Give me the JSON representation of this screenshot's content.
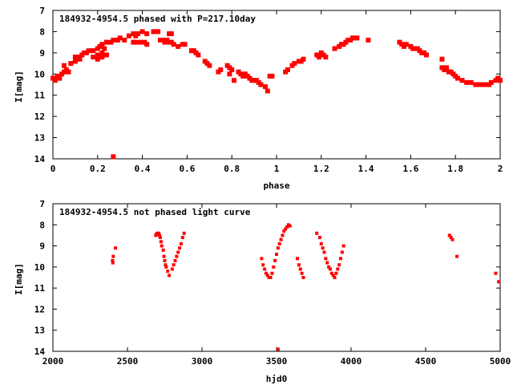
{
  "colors": {
    "marker": "#ff0000",
    "axis": "#000000",
    "background": "#ffffff"
  },
  "chart_data": [
    {
      "type": "scatter",
      "title": "184932-4954.5 phased with P=217.10day",
      "xlabel": "phase",
      "ylabel": "I[mag]",
      "xlim": [
        0,
        2
      ],
      "ylim": [
        14,
        7
      ],
      "y_inverted": true,
      "xticks": [
        "0",
        "0.2",
        "0.4",
        "0.6",
        "0.8",
        "1",
        "1.2",
        "1.4",
        "1.6",
        "1.8",
        "2"
      ],
      "yticks": [
        "7",
        "8",
        "9",
        "10",
        "11",
        "12",
        "13",
        "14"
      ],
      "grid": false,
      "legend": "none",
      "marker": "filled-square",
      "points": [
        [
          0.0,
          10.2
        ],
        [
          0.01,
          10.3
        ],
        [
          0.02,
          10.1
        ],
        [
          0.03,
          10.2
        ],
        [
          0.04,
          10.0
        ],
        [
          0.05,
          9.9
        ],
        [
          0.06,
          9.8
        ],
        [
          0.07,
          9.9
        ],
        [
          0.05,
          9.6
        ],
        [
          0.08,
          9.5
        ],
        [
          0.1,
          9.4
        ],
        [
          0.11,
          9.2
        ],
        [
          0.12,
          9.3
        ],
        [
          0.13,
          9.1
        ],
        [
          0.14,
          9.0
        ],
        [
          0.16,
          8.9
        ],
        [
          0.18,
          8.9
        ],
        [
          0.2,
          8.8
        ],
        [
          0.21,
          8.7
        ],
        [
          0.22,
          8.6
        ],
        [
          0.24,
          8.5
        ],
        [
          0.26,
          8.5
        ],
        [
          0.27,
          8.4
        ],
        [
          0.1,
          9.2
        ],
        [
          0.15,
          9.0
        ],
        [
          0.18,
          9.2
        ],
        [
          0.2,
          9.1
        ],
        [
          0.22,
          9.0
        ],
        [
          0.23,
          8.8
        ],
        [
          0.2,
          9.3
        ],
        [
          0.22,
          9.2
        ],
        [
          0.24,
          9.1
        ],
        [
          0.29,
          8.4
        ],
        [
          0.3,
          8.3
        ],
        [
          0.32,
          8.4
        ],
        [
          0.34,
          8.2
        ],
        [
          0.36,
          8.1
        ],
        [
          0.37,
          8.2
        ],
        [
          0.38,
          8.1
        ],
        [
          0.4,
          8.0
        ],
        [
          0.42,
          8.1
        ],
        [
          0.36,
          8.5
        ],
        [
          0.37,
          8.5
        ],
        [
          0.39,
          8.5
        ],
        [
          0.41,
          8.5
        ],
        [
          0.42,
          8.6
        ],
        [
          0.45,
          8.0
        ],
        [
          0.46,
          8.0
        ],
        [
          0.47,
          8.0
        ],
        [
          0.48,
          8.4
        ],
        [
          0.49,
          8.4
        ],
        [
          0.5,
          8.5
        ],
        [
          0.51,
          8.4
        ],
        [
          0.52,
          8.5
        ],
        [
          0.53,
          8.5
        ],
        [
          0.54,
          8.6
        ],
        [
          0.52,
          8.1
        ],
        [
          0.53,
          8.1
        ],
        [
          0.56,
          8.7
        ],
        [
          0.58,
          8.6
        ],
        [
          0.59,
          8.6
        ],
        [
          0.62,
          8.9
        ],
        [
          0.63,
          8.9
        ],
        [
          0.64,
          9.0
        ],
        [
          0.65,
          9.1
        ],
        [
          0.68,
          9.4
        ],
        [
          0.69,
          9.5
        ],
        [
          0.7,
          9.6
        ],
        [
          0.74,
          9.9
        ],
        [
          0.75,
          9.8
        ],
        [
          0.78,
          9.6
        ],
        [
          0.79,
          9.7
        ],
        [
          0.8,
          9.8
        ],
        [
          0.79,
          10.0
        ],
        [
          0.81,
          10.3
        ],
        [
          0.83,
          9.9
        ],
        [
          0.84,
          10.0
        ],
        [
          0.85,
          10.1
        ],
        [
          0.86,
          10.0
        ],
        [
          0.87,
          10.1
        ],
        [
          0.88,
          10.2
        ],
        [
          0.89,
          10.3
        ],
        [
          0.9,
          10.3
        ],
        [
          0.91,
          10.3
        ],
        [
          0.92,
          10.4
        ],
        [
          0.93,
          10.5
        ],
        [
          0.95,
          10.6
        ],
        [
          0.96,
          10.8
        ],
        [
          0.97,
          10.1
        ],
        [
          0.98,
          10.1
        ],
        [
          1.04,
          9.9
        ],
        [
          1.05,
          9.8
        ],
        [
          1.07,
          9.6
        ],
        [
          1.08,
          9.5
        ],
        [
          1.1,
          9.4
        ],
        [
          1.11,
          9.4
        ],
        [
          1.12,
          9.3
        ],
        [
          1.18,
          9.1
        ],
        [
          1.19,
          9.2
        ],
        [
          1.2,
          9.0
        ],
        [
          1.21,
          9.1
        ],
        [
          1.22,
          9.2
        ],
        [
          1.26,
          8.8
        ],
        [
          1.28,
          8.7
        ],
        [
          1.29,
          8.6
        ],
        [
          1.3,
          8.6
        ],
        [
          1.31,
          8.5
        ],
        [
          1.32,
          8.4
        ],
        [
          1.33,
          8.4
        ],
        [
          1.34,
          8.3
        ],
        [
          1.35,
          8.3
        ],
        [
          1.36,
          8.3
        ],
        [
          1.41,
          8.4
        ],
        [
          1.55,
          8.5
        ],
        [
          1.56,
          8.6
        ],
        [
          1.57,
          8.7
        ],
        [
          1.58,
          8.6
        ],
        [
          1.6,
          8.7
        ],
        [
          1.61,
          8.8
        ],
        [
          1.62,
          8.8
        ],
        [
          1.63,
          8.8
        ],
        [
          1.64,
          8.9
        ],
        [
          1.65,
          9.0
        ],
        [
          1.66,
          9.0
        ],
        [
          1.67,
          9.1
        ],
        [
          1.74,
          9.3
        ],
        [
          1.74,
          9.7
        ],
        [
          1.75,
          9.8
        ],
        [
          1.76,
          9.7
        ],
        [
          1.77,
          9.9
        ],
        [
          1.78,
          9.9
        ],
        [
          1.79,
          10.0
        ],
        [
          1.8,
          10.1
        ],
        [
          1.81,
          10.2
        ],
        [
          1.83,
          10.3
        ],
        [
          1.85,
          10.4
        ],
        [
          1.87,
          10.4
        ],
        [
          1.89,
          10.5
        ],
        [
          1.91,
          10.5
        ],
        [
          1.93,
          10.5
        ],
        [
          1.95,
          10.5
        ],
        [
          1.96,
          10.4
        ],
        [
          1.98,
          10.3
        ],
        [
          1.99,
          10.2
        ],
        [
          2.0,
          10.3
        ],
        [
          0.27,
          13.9
        ]
      ]
    },
    {
      "type": "scatter",
      "title": "184932-4954.5 not phased light curve",
      "xlabel": "hjd0",
      "ylabel": "I[mag]",
      "xlim": [
        2000,
        5000
      ],
      "ylim": [
        14,
        7
      ],
      "y_inverted": true,
      "xticks": [
        "2000",
        "2500",
        "3000",
        "3500",
        "4000",
        "4500",
        "5000"
      ],
      "yticks": [
        "7",
        "8",
        "9",
        "10",
        "11",
        "12",
        "13",
        "14"
      ],
      "grid": false,
      "legend": "none",
      "marker": "dot",
      "points": [
        [
          2400,
          9.7
        ],
        [
          2402,
          9.8
        ],
        [
          2405,
          9.5
        ],
        [
          2420,
          9.1
        ],
        [
          2690,
          8.5
        ],
        [
          2695,
          8.45
        ],
        [
          2700,
          8.4
        ],
        [
          2705,
          8.45
        ],
        [
          2710,
          8.4
        ],
        [
          2715,
          8.5
        ],
        [
          2720,
          8.6
        ],
        [
          2725,
          8.8
        ],
        [
          2730,
          9.0
        ],
        [
          2740,
          9.2
        ],
        [
          2745,
          9.5
        ],
        [
          2750,
          9.7
        ],
        [
          2755,
          9.9
        ],
        [
          2760,
          10.0
        ],
        [
          2770,
          10.2
        ],
        [
          2780,
          10.4
        ],
        [
          2800,
          10.1
        ],
        [
          2810,
          9.9
        ],
        [
          2820,
          9.7
        ],
        [
          2830,
          9.5
        ],
        [
          2840,
          9.3
        ],
        [
          2850,
          9.1
        ],
        [
          2860,
          8.9
        ],
        [
          2870,
          8.6
        ],
        [
          2880,
          8.4
        ],
        [
          3400,
          9.6
        ],
        [
          3410,
          9.9
        ],
        [
          3420,
          10.1
        ],
        [
          3430,
          10.3
        ],
        [
          3440,
          10.4
        ],
        [
          3450,
          10.5
        ],
        [
          3460,
          10.5
        ],
        [
          3470,
          10.3
        ],
        [
          3480,
          10.0
        ],
        [
          3490,
          9.7
        ],
        [
          3500,
          9.4
        ],
        [
          3510,
          9.1
        ],
        [
          3520,
          8.9
        ],
        [
          3530,
          8.7
        ],
        [
          3540,
          8.5
        ],
        [
          3550,
          8.3
        ],
        [
          3560,
          8.2
        ],
        [
          3570,
          8.1
        ],
        [
          3580,
          8.0
        ],
        [
          3590,
          8.05
        ],
        [
          3640,
          9.6
        ],
        [
          3650,
          9.9
        ],
        [
          3660,
          10.1
        ],
        [
          3670,
          10.3
        ],
        [
          3680,
          10.5
        ],
        [
          3770,
          8.4
        ],
        [
          3790,
          8.6
        ],
        [
          3800,
          8.9
        ],
        [
          3810,
          9.1
        ],
        [
          3820,
          9.3
        ],
        [
          3830,
          9.6
        ],
        [
          3840,
          9.8
        ],
        [
          3850,
          10.0
        ],
        [
          3860,
          10.1
        ],
        [
          3870,
          10.3
        ],
        [
          3880,
          10.4
        ],
        [
          3890,
          10.5
        ],
        [
          3900,
          10.3
        ],
        [
          3910,
          10.1
        ],
        [
          3920,
          9.9
        ],
        [
          3930,
          9.6
        ],
        [
          3940,
          9.3
        ],
        [
          3950,
          9.0
        ],
        [
          4660,
          8.5
        ],
        [
          4670,
          8.6
        ],
        [
          4680,
          8.7
        ],
        [
          4710,
          9.5
        ],
        [
          4970,
          10.3
        ],
        [
          4990,
          10.7
        ],
        [
          3510,
          13.9
        ]
      ]
    }
  ]
}
